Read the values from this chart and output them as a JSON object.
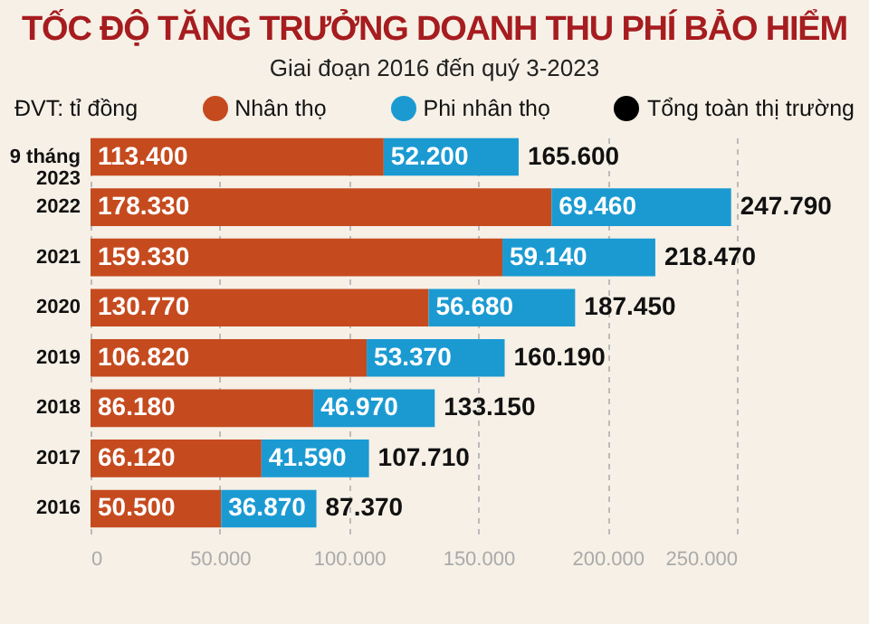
{
  "chart_data": {
    "type": "bar",
    "orientation": "horizontal",
    "stacked": true,
    "title": "TỐC ĐỘ TĂNG TRƯỞNG DOANH THU PHÍ BẢO HIỂM",
    "subtitle": "Giai đoạn 2016 đến quý 3-2023",
    "annotations": [
      "ĐVT: tỉ đồng",
      "Tổng toàn thị trường"
    ],
    "categories": [
      "9 tháng\n2023",
      "2022",
      "2021",
      "2020",
      "2019",
      "2018",
      "2017",
      "2016"
    ],
    "series": [
      {
        "name": "Nhân thọ",
        "color": "#c54b1f",
        "values": [
          113400,
          178330,
          159330,
          130770,
          106820,
          86180,
          66120,
          50500
        ],
        "value_labels": [
          "113.400",
          "178.330",
          "159.330",
          "130.770",
          "106.820",
          "86.180",
          "66.120",
          "50.500"
        ]
      },
      {
        "name": "Phi nhân thọ",
        "color": "#1b9ad2",
        "values": [
          52200,
          69460,
          59140,
          56680,
          53370,
          46970,
          41590,
          36870
        ],
        "value_labels": [
          "52.200",
          "69.460",
          "59.140",
          "56.680",
          "53.370",
          "46.970",
          "41.590",
          "36.870"
        ]
      }
    ],
    "totals": [
      "165.600",
      "247.790",
      "218.470",
      "187.450",
      "160.190",
      "133.150",
      "107.710",
      "87.370"
    ],
    "xlim": [
      0,
      250000
    ],
    "xticks": [
      {
        "value": 0,
        "label": "0"
      },
      {
        "value": 50000,
        "label": "50.000"
      },
      {
        "value": 100000,
        "label": "100.000"
      },
      {
        "value": 150000,
        "label": "150.000"
      },
      {
        "value": 200000,
        "label": "200.000"
      },
      {
        "value": 250000,
        "label": "250.000"
      }
    ],
    "grid": "x",
    "legend": "top"
  }
}
